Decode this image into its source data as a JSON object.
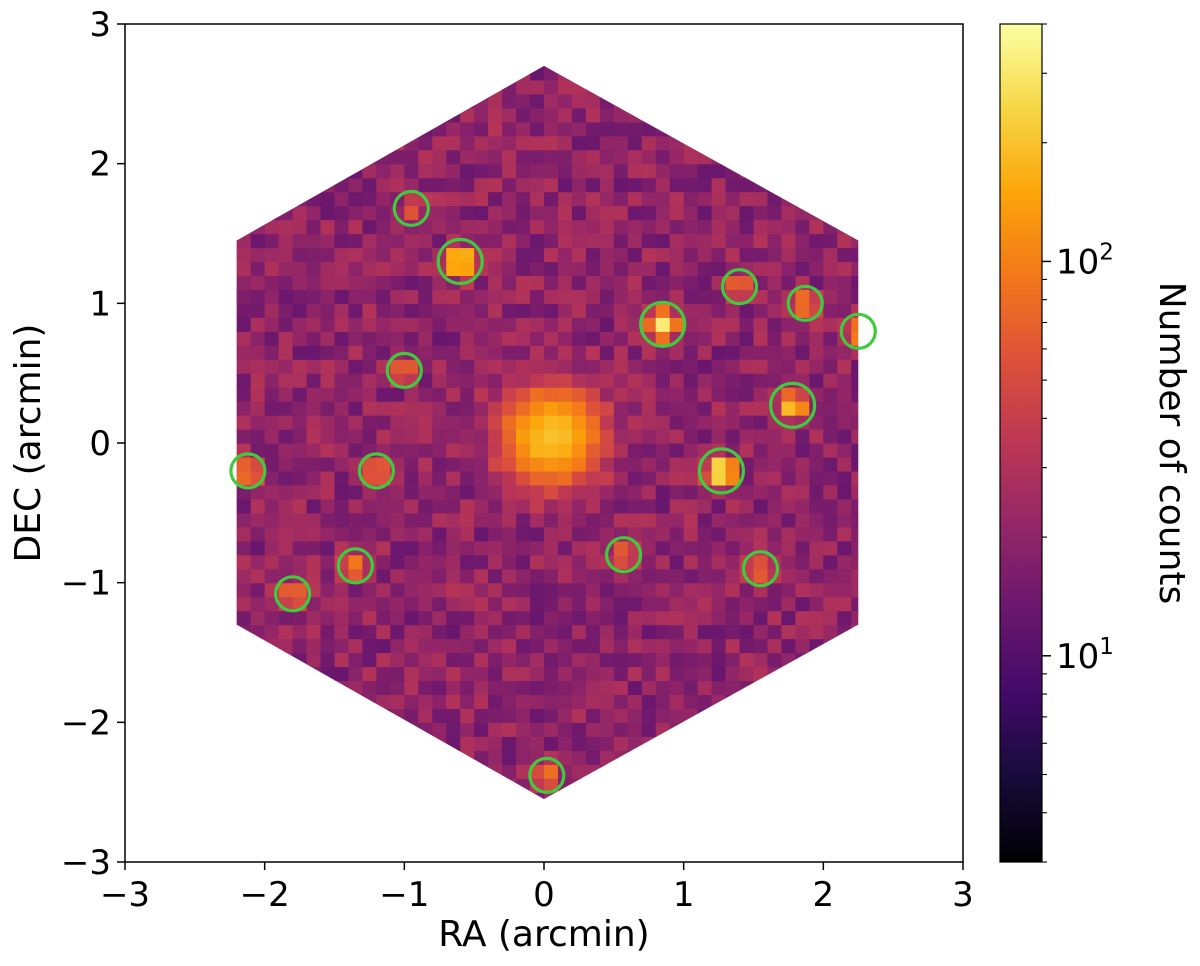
{
  "chart_data": {
    "type": "heatmap",
    "title": "",
    "xlabel": "RA (arcmin)",
    "ylabel": "DEC (arcmin)",
    "xlim": [
      -3,
      3
    ],
    "ylim": [
      -3,
      3
    ],
    "x_ticks": [
      -3,
      -2,
      -1,
      0,
      1,
      2,
      3
    ],
    "y_ticks": [
      -3,
      -2,
      -1,
      0,
      1,
      2,
      3
    ],
    "x_tick_labels": [
      "−3",
      "−2",
      "−1",
      "0",
      "1",
      "2",
      "3"
    ],
    "y_tick_labels": [
      "−3",
      "−2",
      "−1",
      "0",
      "1",
      "2",
      "3"
    ],
    "grid": false,
    "colormap": "inferno",
    "colorbar": {
      "label": "Number of counts",
      "scale": "log",
      "range": [
        3,
        400
      ],
      "ticks": [
        {
          "value": 10,
          "base": "10",
          "exp": "1"
        },
        {
          "value": 100,
          "base": "10",
          "exp": "2"
        }
      ]
    },
    "footprint": {
      "shape": "hexagon",
      "vertices": [
        [
          0,
          2.7
        ],
        [
          2.25,
          1.45
        ],
        [
          2.25,
          -1.3
        ],
        [
          0,
          -2.55
        ],
        [
          -2.2,
          -1.3
        ],
        [
          -2.2,
          1.45
        ]
      ],
      "background_counts": 20
    },
    "extended_source": {
      "ra": 0.05,
      "dec": 0.05,
      "peak_counts": 180,
      "sigma_arcmin": 0.2
    },
    "point_sources": [
      {
        "ra": -0.95,
        "dec": 1.68,
        "counts": 45,
        "circled": true
      },
      {
        "ra": -0.6,
        "dec": 1.3,
        "counts": 300,
        "circled": true
      },
      {
        "ra": -1.0,
        "dec": 0.52,
        "counts": 60,
        "circled": true
      },
      {
        "ra": -2.12,
        "dec": -0.2,
        "counts": 90,
        "circled": true
      },
      {
        "ra": -1.2,
        "dec": -0.2,
        "counts": 90,
        "circled": true
      },
      {
        "ra": -1.35,
        "dec": -0.88,
        "counts": 90,
        "circled": true
      },
      {
        "ra": -1.8,
        "dec": -1.08,
        "counts": 80,
        "circled": true
      },
      {
        "ra": 0.02,
        "dec": -2.38,
        "counts": 90,
        "circled": true
      },
      {
        "ra": 0.57,
        "dec": -0.8,
        "counts": 60,
        "circled": true
      },
      {
        "ra": 0.85,
        "dec": 0.85,
        "counts": 300,
        "circled": true
      },
      {
        "ra": 1.4,
        "dec": 1.12,
        "counts": 80,
        "circled": true
      },
      {
        "ra": 1.87,
        "dec": 1.0,
        "counts": 80,
        "circled": true
      },
      {
        "ra": 2.25,
        "dec": 0.8,
        "counts": 100,
        "circled": true
      },
      {
        "ra": 1.78,
        "dec": 0.27,
        "counts": 200,
        "circled": true
      },
      {
        "ra": 1.27,
        "dec": -0.2,
        "counts": 350,
        "circled": true
      },
      {
        "ra": 1.55,
        "dec": -0.9,
        "counts": 60,
        "circled": true
      }
    ],
    "circle_color": "#3ecc3e"
  }
}
